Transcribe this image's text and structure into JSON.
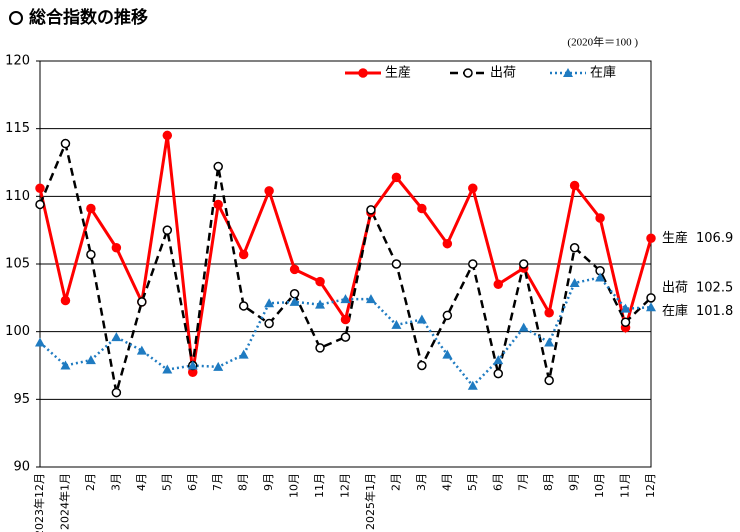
{
  "chart_data": {
    "type": "line",
    "title": "総合指数の推移",
    "subtitle": "(2020年＝100 )",
    "categories": [
      "2023年12月",
      "2024年1月",
      "2月",
      "3月",
      "4月",
      "5月",
      "6月",
      "7月",
      "8月",
      "9月",
      "10月",
      "11月",
      "12月",
      "2025年1月",
      "2月",
      "3月",
      "4月",
      "5月",
      "6月",
      "7月",
      "8月",
      "9月",
      "10月",
      "11月",
      "12月"
    ],
    "series": [
      {
        "name": "生産",
        "color": "#ff0000",
        "line_style": "solid",
        "marker": "circle",
        "values": [
          110.6,
          102.3,
          109.1,
          106.2,
          102.2,
          114.5,
          97.0,
          109.4,
          105.7,
          110.4,
          104.6,
          103.7,
          100.9,
          108.8,
          111.4,
          109.1,
          106.5,
          110.6,
          103.5,
          104.7,
          101.4,
          110.8,
          108.4,
          100.3,
          106.9
        ]
      },
      {
        "name": "出荷",
        "color": "#000000",
        "line_style": "dashed",
        "marker": "open-circle",
        "values": [
          109.4,
          113.9,
          105.7,
          95.5,
          102.2,
          107.5,
          97.5,
          112.2,
          101.9,
          100.6,
          102.8,
          98.8,
          99.6,
          109.0,
          105.0,
          97.5,
          101.2,
          105.0,
          96.9,
          105.0,
          96.4,
          106.2,
          104.5,
          100.7,
          102.5
        ]
      },
      {
        "name": "在庫",
        "color": "#1f7bc1",
        "line_style": "dotted",
        "marker": "triangle",
        "values": [
          99.2,
          97.5,
          97.9,
          99.6,
          98.6,
          97.2,
          97.5,
          97.4,
          98.3,
          102.1,
          102.2,
          102.0,
          102.4,
          102.4,
          100.5,
          100.9,
          98.3,
          96.0,
          97.9,
          100.3,
          99.2,
          103.6,
          104.0,
          101.7,
          101.8
        ]
      }
    ],
    "ylim": [
      90,
      120
    ],
    "yticks": [
      90,
      95,
      100,
      105,
      110,
      115,
      120
    ],
    "grid": true,
    "legend": "top-right"
  }
}
